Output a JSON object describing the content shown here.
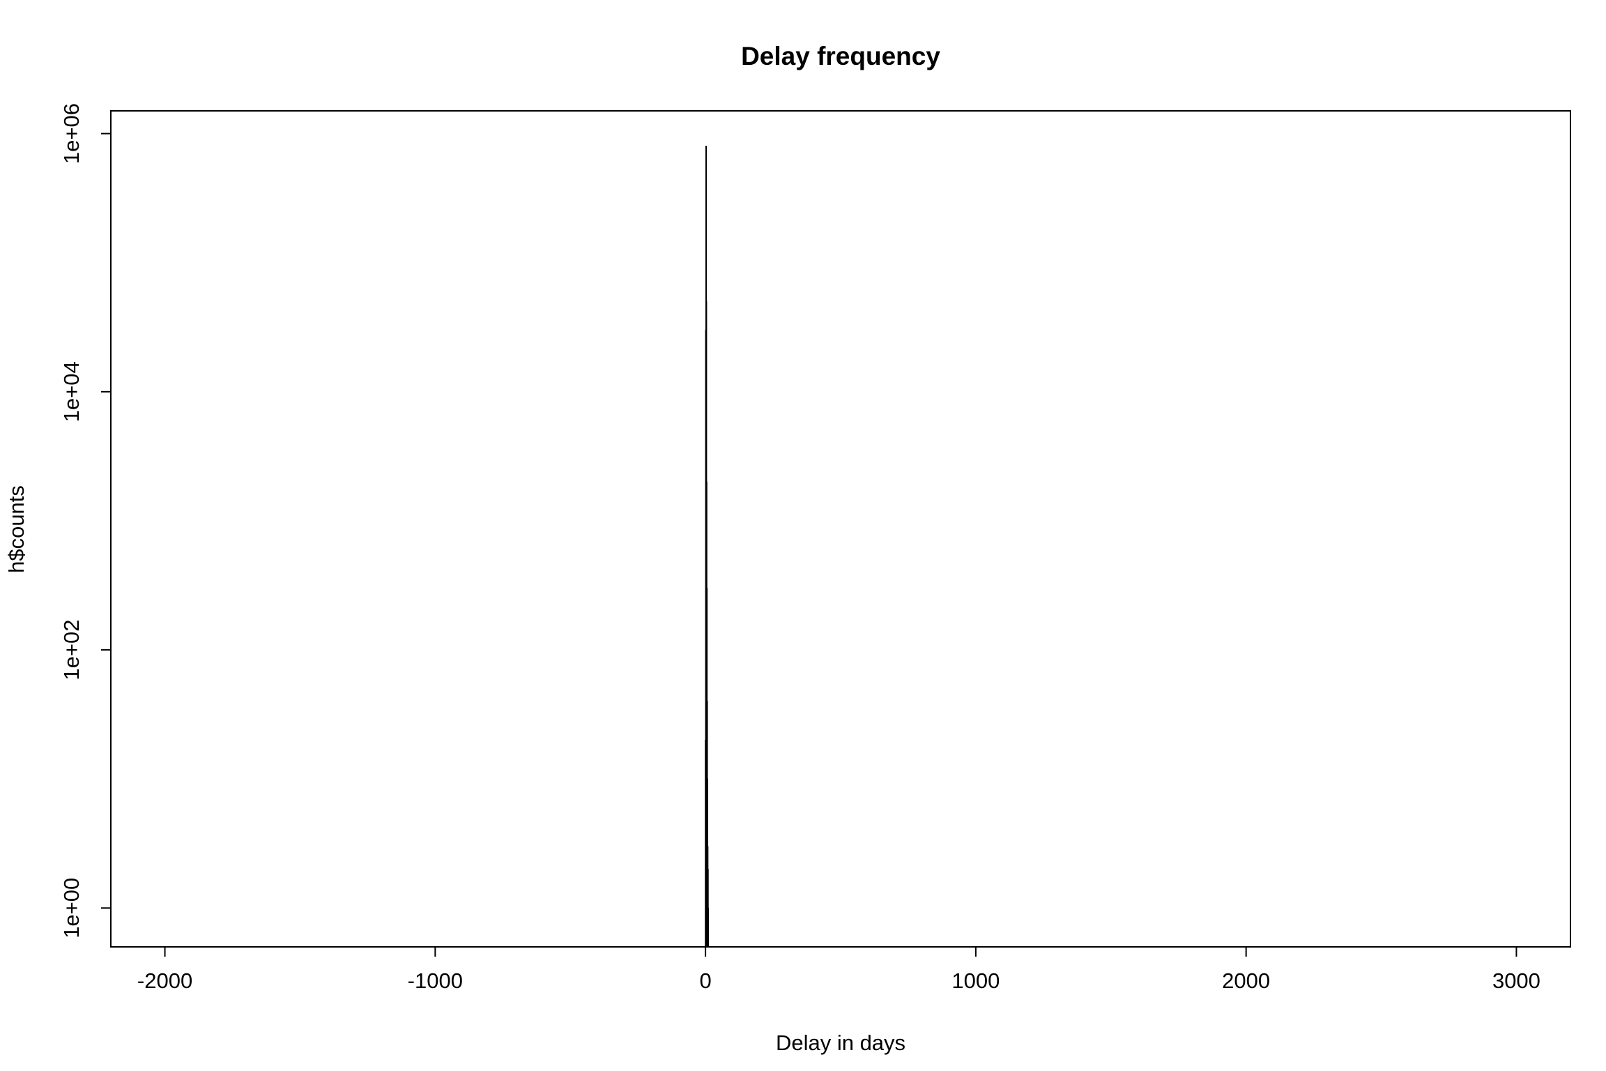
{
  "chart_data": {
    "type": "bar",
    "title": "Delay frequency",
    "xlabel": "Delay in days",
    "ylabel": "h$counts",
    "xlim": [
      -2200,
      3200
    ],
    "ylim": [
      0.5,
      1500000
    ],
    "y_scale": "log",
    "x_ticks": [
      -2000,
      -1000,
      0,
      1000,
      2000,
      3000
    ],
    "x_tick_labels": [
      "-2000",
      "-1000",
      "0",
      "1000",
      "2000",
      "3000"
    ],
    "y_ticks": [
      1,
      100,
      10000,
      1000000
    ],
    "y_tick_labels": [
      "1e+00",
      "1e+02",
      "1e+04",
      "1e+06"
    ],
    "grid": false,
    "legend": "none",
    "bar_color": "#000000",
    "series": [
      {
        "x": [
          -1,
          0,
          1,
          2,
          3,
          4,
          5,
          6,
          7,
          8,
          9
        ],
        "values": [
          20,
          30000,
          800000,
          50000,
          2000,
          300,
          40,
          10,
          3,
          2,
          1
        ]
      }
    ]
  }
}
